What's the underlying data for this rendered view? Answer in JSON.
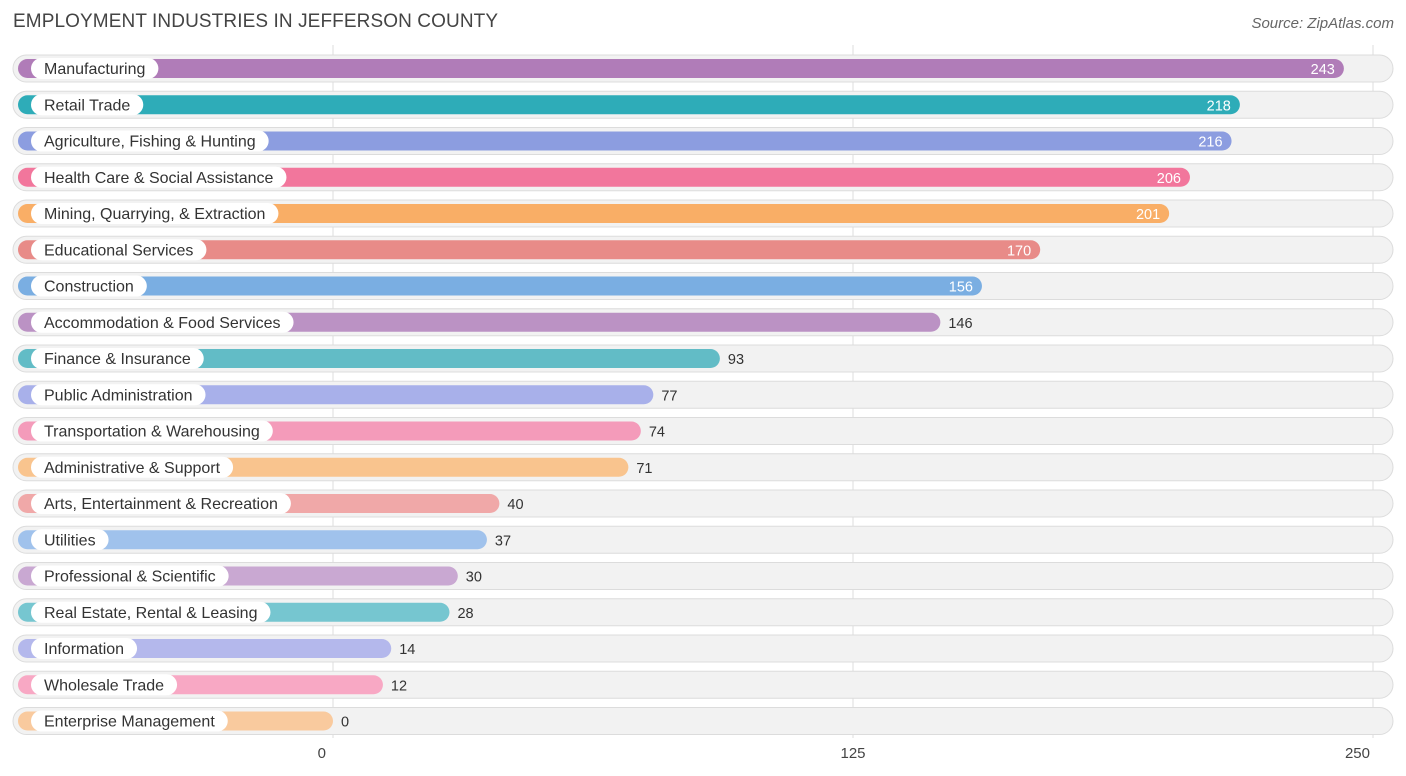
{
  "chart_data": {
    "type": "bar",
    "orientation": "horizontal",
    "title": "EMPLOYMENT INDUSTRIES IN JEFFERSON COUNTY",
    "source": "Source: ZipAtlas.com",
    "xlim": [
      0,
      250
    ],
    "xticks": [
      0,
      125,
      250
    ],
    "categories": [
      "Manufacturing",
      "Retail Trade",
      "Agriculture, Fishing & Hunting",
      "Health Care & Social Assistance",
      "Mining, Quarrying, & Extraction",
      "Educational Services",
      "Construction",
      "Accommodation & Food Services",
      "Finance & Insurance",
      "Public Administration",
      "Transportation & Warehousing",
      "Administrative & Support",
      "Arts, Entertainment & Recreation",
      "Utilities",
      "Professional & Scientific",
      "Real Estate, Rental & Leasing",
      "Information",
      "Wholesale Trade",
      "Enterprise Management"
    ],
    "values": [
      243,
      218,
      216,
      206,
      201,
      170,
      156,
      146,
      93,
      77,
      74,
      71,
      40,
      37,
      30,
      28,
      14,
      12,
      0
    ],
    "colors": [
      "#b07cb8",
      "#2eacb8",
      "#8c9de0",
      "#f2769c",
      "#f9ae66",
      "#e88b88",
      "#7aaee2",
      "#bb92c4",
      "#62bcc6",
      "#a8b0ea",
      "#f49bba",
      "#f9c48e",
      "#f0a8a8",
      "#a0c2ec",
      "#c9a8d2",
      "#76c6d0",
      "#b4b8ec",
      "#f8a8c4",
      "#f9ca9e"
    ]
  }
}
